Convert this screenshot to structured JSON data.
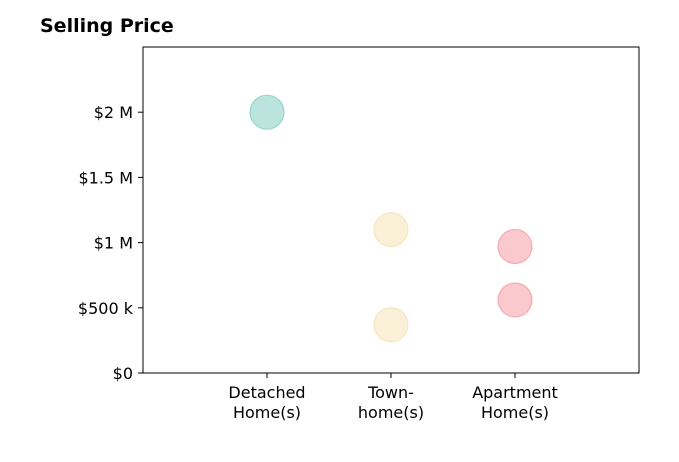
{
  "chart_data": {
    "type": "scatter",
    "title": "Selling Price",
    "xlabel": "",
    "ylabel": "",
    "categories": [
      [
        "Detached",
        "Home(s)"
      ],
      [
        "Town-",
        "home(s)"
      ],
      [
        "Apartment",
        "Home(s)"
      ]
    ],
    "xlim": [
      0,
      4
    ],
    "ylim": [
      0,
      2500000
    ],
    "yticks": [
      {
        "value": 0,
        "label": "$0"
      },
      {
        "value": 500000,
        "label": "$500 k"
      },
      {
        "value": 1000000,
        "label": "$1 M"
      },
      {
        "value": 1500000,
        "label": "$1.5 M"
      },
      {
        "value": 2000000,
        "label": "$2 M"
      }
    ],
    "grid": false,
    "points": [
      {
        "category": 0,
        "y": 2000000,
        "color": "#5fbfb3"
      },
      {
        "category": 1,
        "y": 1100000,
        "color": "#f3d9a0"
      },
      {
        "category": 1,
        "y": 370000,
        "color": "#f3d9a0"
      },
      {
        "category": 2,
        "y": 970000,
        "color": "#f07f8a"
      },
      {
        "category": 2,
        "y": 560000,
        "color": "#f07f8a"
      }
    ]
  }
}
